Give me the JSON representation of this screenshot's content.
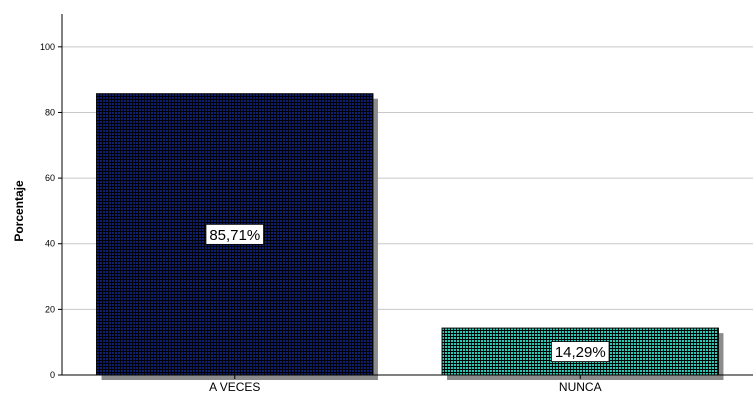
{
  "chart_data": {
    "type": "bar",
    "title": "",
    "xlabel": "",
    "ylabel": "Porcentaje",
    "ylim": [
      0,
      110
    ],
    "yticks": [
      0,
      20,
      40,
      60,
      80,
      100
    ],
    "grid": true,
    "categories": [
      "A VECES",
      "NUNCA"
    ],
    "values": [
      85.71,
      14.29
    ],
    "data_labels": [
      "85,71%",
      "14,29%"
    ],
    "colors": [
      "#0f1f6b",
      "#2ec9b5"
    ]
  }
}
